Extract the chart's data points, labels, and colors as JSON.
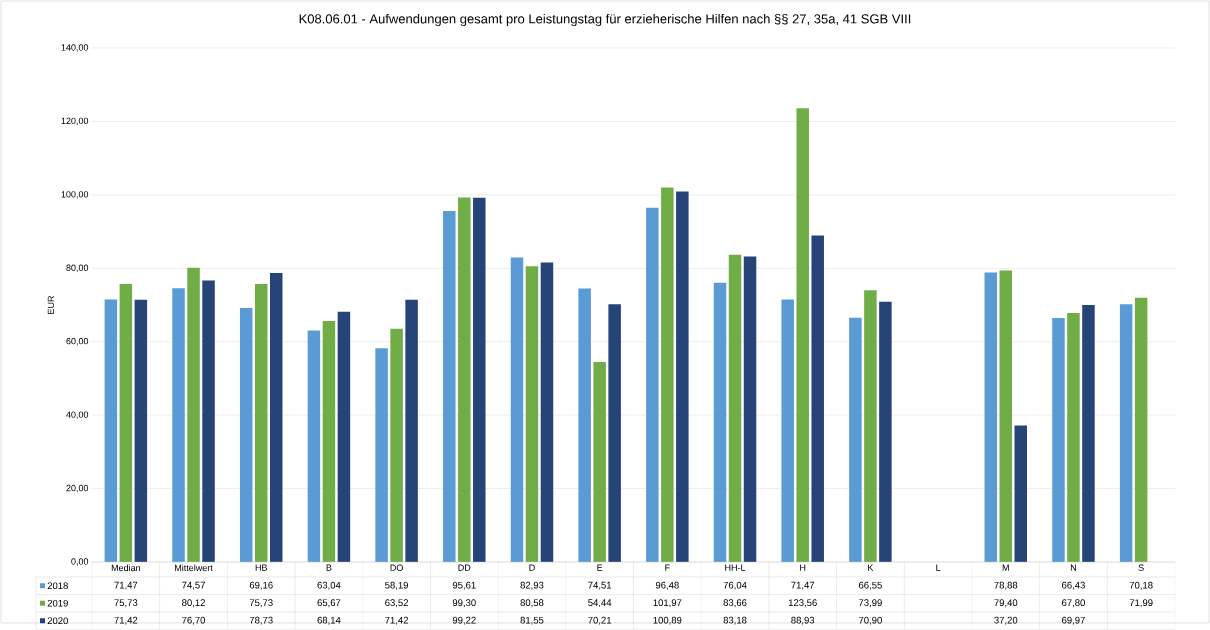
{
  "chart_data": {
    "type": "bar",
    "title": "K08.06.01 - Aufwendungen gesamt pro Leistungstag für erzieherische Hilfen nach §§ 27, 35a, 41 SGB VIII",
    "ylabel": "EUR",
    "categories": [
      "Median",
      "Mittelwert",
      "HB",
      "B",
      "DO",
      "DD",
      "D",
      "E",
      "F",
      "HH-L",
      "H",
      "K",
      "L",
      "M",
      "N",
      "S"
    ],
    "series": [
      {
        "name": "2018",
        "color": "#5b9bd5",
        "values": [
          71.47,
          74.57,
          69.16,
          63.04,
          58.19,
          95.61,
          82.93,
          74.51,
          96.48,
          76.04,
          71.47,
          66.55,
          null,
          78.88,
          66.43,
          70.18
        ],
        "value_labels": [
          "71,47",
          "74,57",
          "69,16",
          "63,04",
          "58,19",
          "95,61",
          "82,93",
          "74,51",
          "96,48",
          "76,04",
          "71,47",
          "66,55",
          null,
          "78,88",
          "66,43",
          "70,18"
        ]
      },
      {
        "name": "2019",
        "color": "#70ad47",
        "values": [
          75.73,
          80.12,
          75.73,
          65.67,
          63.52,
          99.3,
          80.58,
          54.44,
          101.97,
          83.66,
          123.56,
          73.99,
          null,
          79.4,
          67.8,
          71.99
        ],
        "value_labels": [
          "75,73",
          "80,12",
          "75,73",
          "65,67",
          "63,52",
          "99,30",
          "80,58",
          "54,44",
          "101,97",
          "83,66",
          "123,56",
          "73,99",
          null,
          "79,40",
          "67,80",
          "71,99"
        ]
      },
      {
        "name": "2020",
        "color": "#264478",
        "values": [
          71.42,
          76.7,
          78.73,
          68.14,
          71.42,
          99.22,
          81.55,
          70.21,
          100.89,
          83.18,
          88.93,
          70.9,
          null,
          37.2,
          69.97,
          null
        ],
        "value_labels": [
          "71,42",
          "76,70",
          "78,73",
          "68,14",
          "71,42",
          "99,22",
          "81,55",
          "70,21",
          "100,89",
          "83,18",
          "88,93",
          "70,90",
          null,
          "37,20",
          "69,97",
          null
        ]
      }
    ],
    "ylim": [
      0,
      140
    ],
    "yticks": [
      {
        "value": 0,
        "label": "0,00"
      },
      {
        "value": 20,
        "label": "20,00"
      },
      {
        "value": 40,
        "label": "40,00"
      },
      {
        "value": 60,
        "label": "60,00"
      },
      {
        "value": 80,
        "label": "80,00"
      },
      {
        "value": 100,
        "label": "100,00"
      },
      {
        "value": 120,
        "label": "120,00"
      },
      {
        "value": 140,
        "label": "140,00"
      }
    ],
    "grid": "y",
    "legend": "bottom"
  }
}
